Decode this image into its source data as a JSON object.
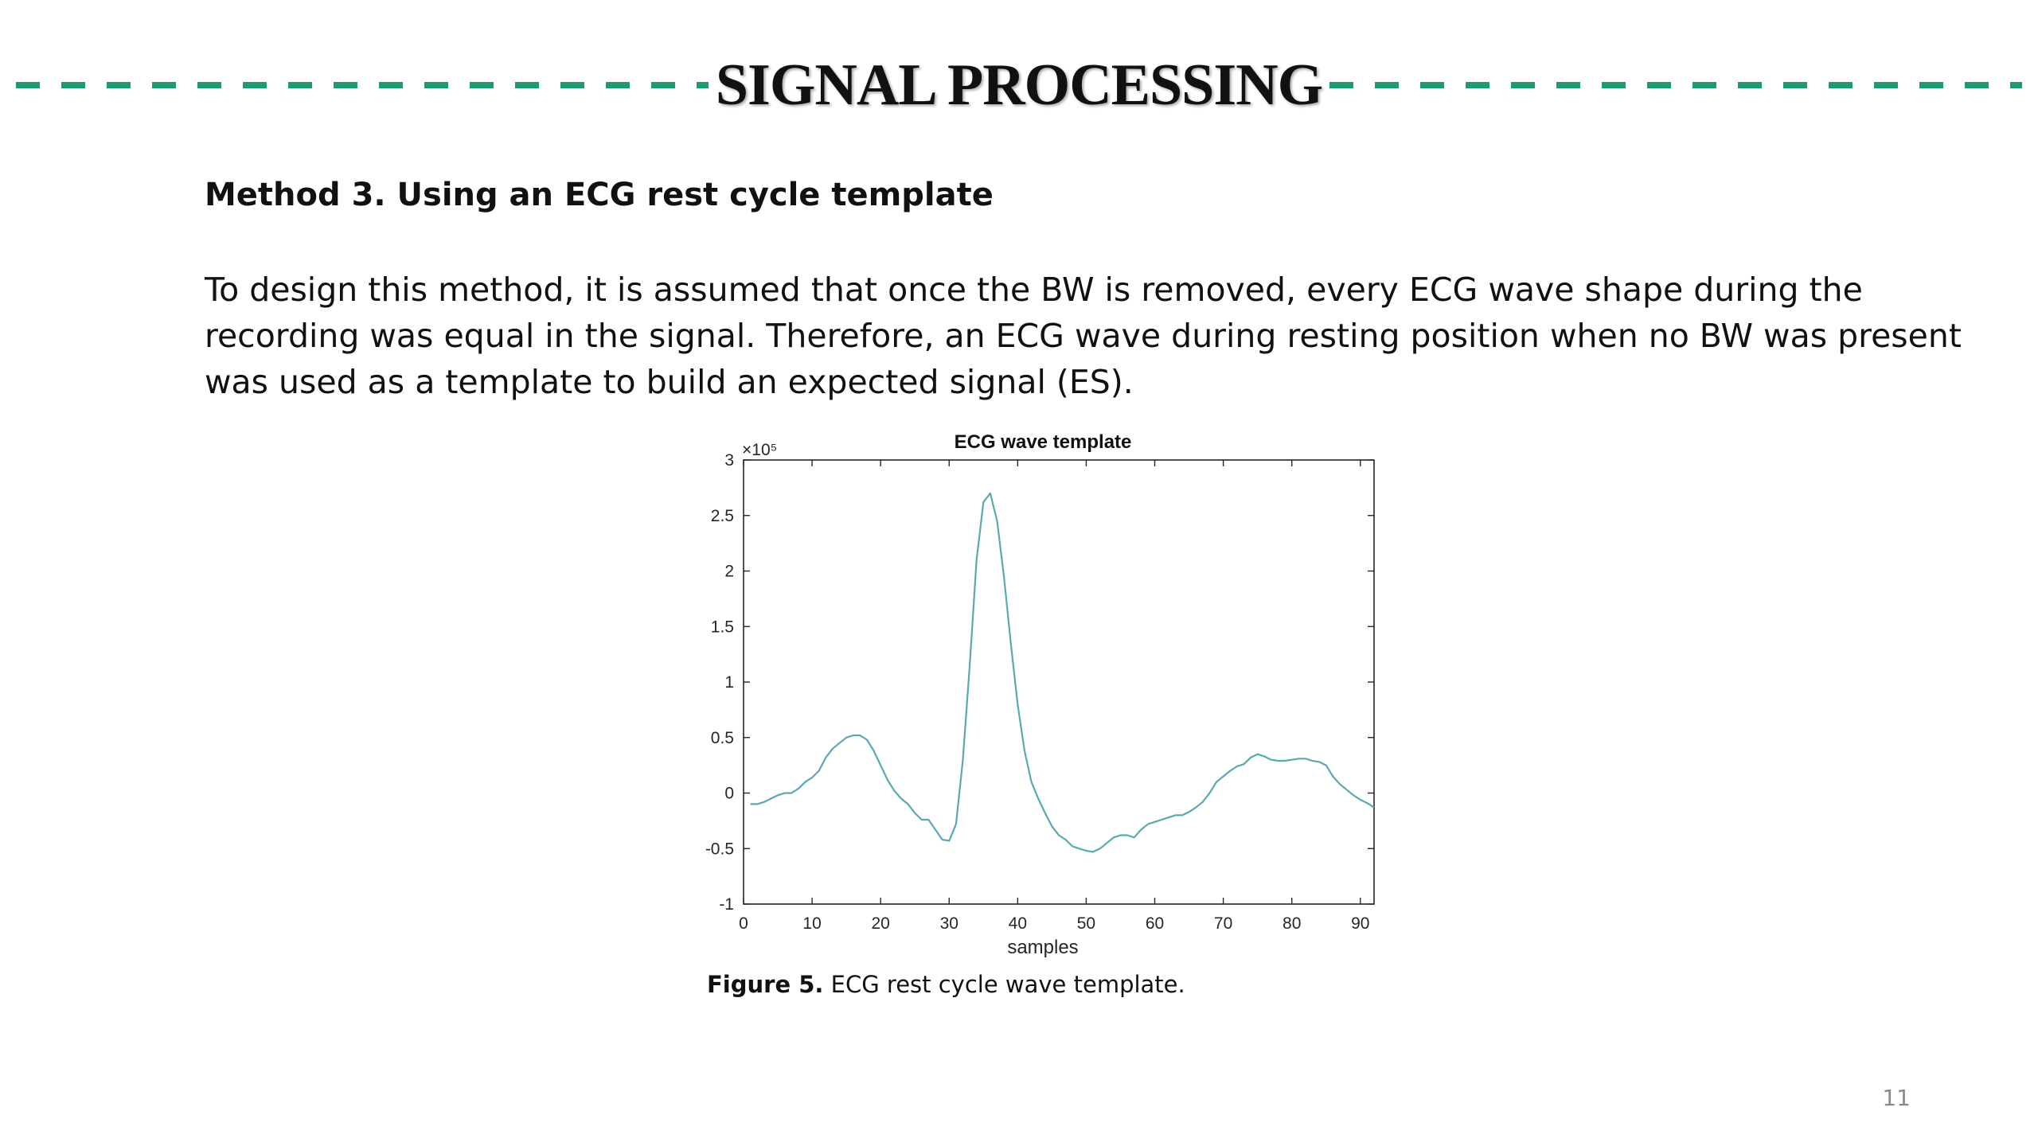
{
  "slide": {
    "title": "SIGNAL PROCESSING",
    "heading": "Method 3. Using an ECG rest cycle template",
    "paragraph": "To design this method, it is assumed that once the BW is removed, every ECG wave shape during the recording was equal in the signal. Therefore, an ECG wave during resting position when no BW was present was used as a template to build an expected signal (ES).",
    "caption_label": "Figure 5.",
    "caption_text": " ECG rest cycle wave template.",
    "page_number": "11"
  },
  "colors": {
    "accent_dash": "#1e9a72",
    "line": "#5aa9b0"
  },
  "chart_data": {
    "type": "line",
    "title": "ECG wave template",
    "xlabel": "samples",
    "ylabel": "",
    "y_multiplier_label": "×10⁵",
    "xlim": [
      0,
      92
    ],
    "ylim": [
      -1,
      3
    ],
    "x_ticks": [
      0,
      10,
      20,
      30,
      40,
      50,
      60,
      70,
      80,
      90
    ],
    "x_tick_labels": [
      "0",
      "10",
      "20",
      "30",
      "40",
      "50",
      "60",
      "70",
      "80",
      "90"
    ],
    "y_ticks": [
      -1,
      -0.5,
      0,
      0.5,
      1,
      1.5,
      2,
      2.5,
      3
    ],
    "y_tick_labels": [
      "-1",
      "-0.5",
      "0",
      "0.5",
      "1",
      "1.5",
      "2",
      "2.5",
      "3"
    ],
    "grid": false,
    "series": [
      {
        "x": [
          1,
          2,
          3,
          4,
          5,
          6,
          7,
          8,
          9,
          10,
          11,
          12,
          13,
          14,
          15,
          16,
          17,
          18,
          19,
          20,
          21,
          22,
          23,
          24,
          25,
          26,
          27,
          28,
          29,
          30,
          31,
          32,
          33,
          34,
          35,
          36,
          37,
          38,
          39,
          40,
          41,
          42,
          43,
          44,
          45,
          46,
          47,
          48,
          49,
          50,
          51,
          52,
          53,
          54,
          55,
          56,
          57,
          58,
          59,
          60,
          61,
          62,
          63,
          64,
          65,
          66,
          67,
          68,
          69,
          70,
          71,
          72,
          73,
          74,
          75,
          76,
          77,
          78,
          79,
          80,
          81,
          82,
          83,
          84,
          85,
          86,
          87,
          88,
          89,
          90,
          91,
          92
        ],
        "values": [
          -0.1,
          -0.1,
          -0.08,
          -0.05,
          -0.02,
          0.0,
          0.0,
          0.04,
          0.1,
          0.14,
          0.2,
          0.32,
          0.4,
          0.45,
          0.5,
          0.52,
          0.52,
          0.48,
          0.38,
          0.25,
          0.12,
          0.02,
          -0.05,
          -0.1,
          -0.18,
          -0.24,
          -0.24,
          -0.33,
          -0.42,
          -0.43,
          -0.28,
          0.3,
          1.15,
          2.1,
          2.62,
          2.7,
          2.45,
          1.95,
          1.35,
          0.8,
          0.38,
          0.1,
          -0.05,
          -0.18,
          -0.3,
          -0.38,
          -0.42,
          -0.48,
          -0.5,
          -0.52,
          -0.53,
          -0.5,
          -0.45,
          -0.4,
          -0.38,
          -0.38,
          -0.4,
          -0.33,
          -0.28,
          -0.26,
          -0.24,
          -0.22,
          -0.2,
          -0.2,
          -0.17,
          -0.13,
          -0.08,
          0.0,
          0.1,
          0.15,
          0.2,
          0.24,
          0.26,
          0.32,
          0.35,
          0.33,
          0.3,
          0.29,
          0.29,
          0.3,
          0.31,
          0.31,
          0.29,
          0.28,
          0.25,
          0.15,
          0.08,
          0.03,
          -0.02,
          -0.06,
          -0.09,
          -0.13
        ]
      }
    ]
  }
}
